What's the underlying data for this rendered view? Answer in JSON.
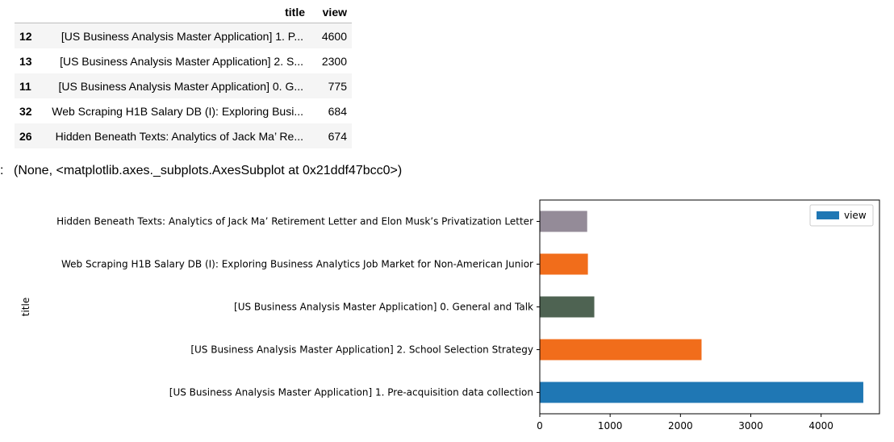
{
  "dataframe": {
    "columns": [
      "title",
      "view"
    ],
    "rows": [
      {
        "index": "12",
        "title": "[US Business Analysis Master Application] 1. P...",
        "view": "4600"
      },
      {
        "index": "13",
        "title": "[US Business Analysis Master Application] 2. S...",
        "view": "2300"
      },
      {
        "index": "11",
        "title": "[US Business Analysis Master Application] 0. G...",
        "view": "775"
      },
      {
        "index": "32",
        "title": "Web Scraping H1B Salary DB (I): Exploring Busi...",
        "view": "684"
      },
      {
        "index": "26",
        "title": "Hidden Beneath Texts: Analytics of Jack Ma’ Re...",
        "view": "674"
      }
    ]
  },
  "output": {
    "prompt": ":",
    "text": "(None, <matplotlib.axes._subplots.AxesSubplot at 0x21ddf47bcc0>)"
  },
  "chart_data": {
    "type": "bar",
    "orientation": "horizontal",
    "categories": [
      "[US Business Analysis Master Application] 1. Pre-acquisition data collection",
      "[US Business Analysis Master Application] 2. School Selection Strategy",
      "[US Business Analysis Master Application] 0. General and Talk",
      "Web Scraping H1B Salary DB (I): Exploring Business Analytics Job Market for Non-American Junior",
      "Hidden Beneath Texts: Analytics of Jack Ma’ Retirement Letter and Elon Musk’s Privatization Letter"
    ],
    "series": [
      {
        "name": "view",
        "values": [
          4600,
          2300,
          775,
          684,
          674
        ]
      }
    ],
    "bar_colors": [
      "#1f77b4",
      "#f16d1b",
      "#4e6352",
      "#f16d1b",
      "#948b98"
    ],
    "legend_color": "#1f77b4",
    "xticks": [
      0,
      1000,
      2000,
      3000,
      4000
    ],
    "xlim": [
      0,
      4830
    ],
    "ylabel": "title",
    "legend": "top-right",
    "grid": false
  }
}
